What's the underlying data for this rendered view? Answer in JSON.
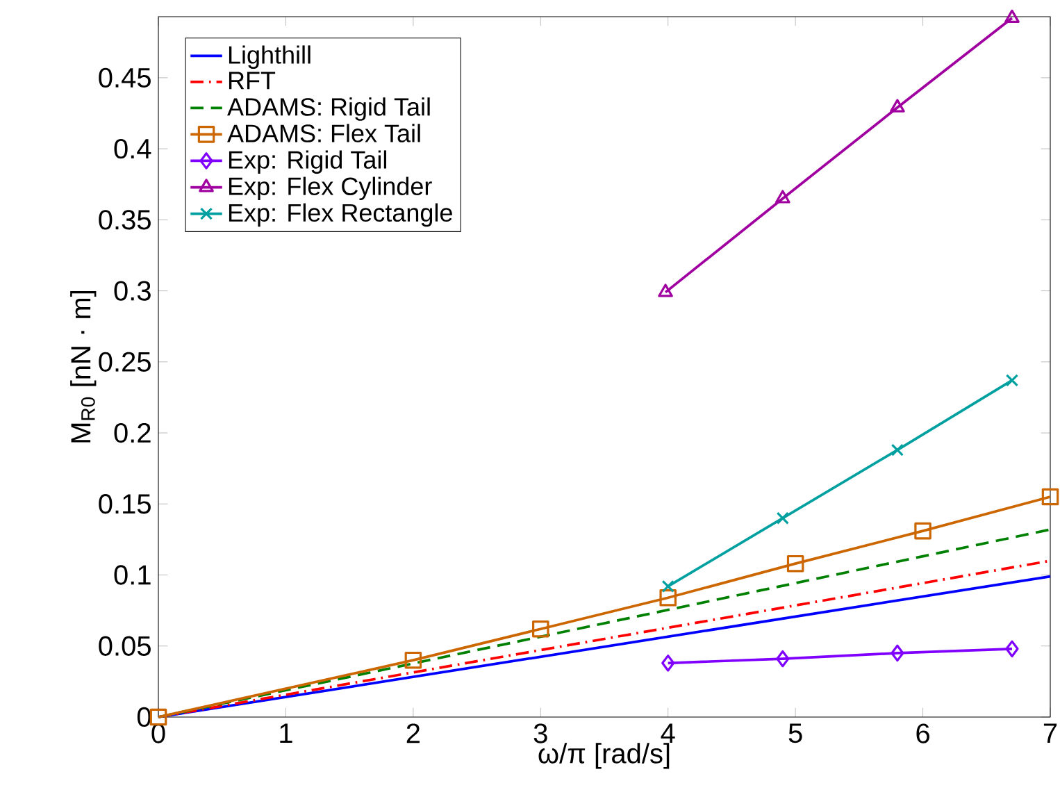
{
  "chart_data": {
    "type": "line",
    "xlabel": "ω/π [rad/s]",
    "ylabel": "M$_{R0}$ [nN · m]",
    "xlim": [
      0,
      7
    ],
    "ylim": [
      0,
      0.493
    ],
    "xticks": [
      0,
      1,
      2,
      3,
      4,
      5,
      6,
      7
    ],
    "yticks": [
      0,
      0.05,
      0.1,
      0.15,
      0.2,
      0.25,
      0.3,
      0.35,
      0.4,
      0.45
    ],
    "legend": "top left",
    "series": [
      {
        "name": "Lighthill",
        "color": "#0000ff",
        "x": [
          0,
          7
        ],
        "values": [
          0,
          0.099
        ],
        "marker": "none",
        "line_style": "solid"
      },
      {
        "name": "RFT",
        "color": "#ff0000",
        "x": [
          0,
          7
        ],
        "values": [
          0,
          0.11
        ],
        "marker": "none",
        "line_style": "dashdot"
      },
      {
        "name": "ADAMS: Rigid Tail",
        "color": "#008000",
        "x": [
          0,
          7
        ],
        "values": [
          0,
          0.132
        ],
        "marker": "none",
        "line_style": "dashed"
      },
      {
        "name": "ADAMS: Flex Tail",
        "color": "#cc6600",
        "x": [
          0,
          2,
          3,
          4,
          5,
          6,
          7
        ],
        "values": [
          0,
          0.04,
          0.062,
          0.084,
          0.108,
          0.131,
          0.155
        ],
        "marker": "square",
        "line_style": "solid"
      },
      {
        "name": "Exp: Rigid Tail",
        "color": "#7f00ff",
        "x": [
          4,
          4.9,
          5.8,
          6.7
        ],
        "values": [
          0.038,
          0.041,
          0.045,
          0.048
        ],
        "marker": "diamond",
        "line_style": "solid"
      },
      {
        "name": "Exp: Flex Cylinder",
        "color": "#a000a0",
        "x": [
          3.98,
          4.9,
          5.8,
          6.7
        ],
        "values": [
          0.299,
          0.365,
          0.429,
          0.492
        ],
        "marker": "triangle",
        "line_style": "solid"
      },
      {
        "name": "Exp: Flex Rectangle",
        "color": "#00a0a0",
        "x": [
          4,
          4.9,
          5.8,
          6.7
        ],
        "values": [
          0.092,
          0.14,
          0.188,
          0.237
        ],
        "marker": "cross",
        "line_style": "solid"
      }
    ]
  }
}
